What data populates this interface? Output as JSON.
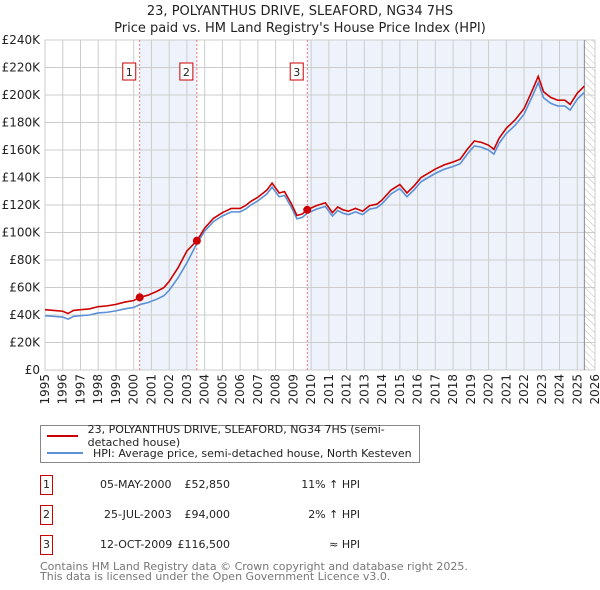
{
  "chart_data": {
    "type": "line",
    "title": "23, POLYANTHUS DRIVE, SLEAFORD, NG34 7HS",
    "subtitle": "Price paid vs. HM Land Registry's House Price Index (HPI)",
    "xlim": [
      1995,
      2026
    ],
    "ylim": [
      0,
      240000
    ],
    "x_ticks": [
      "1995",
      "1996",
      "1997",
      "1998",
      "1999",
      "2000",
      "2001",
      "2002",
      "2003",
      "2004",
      "2005",
      "2006",
      "2007",
      "2008",
      "2009",
      "2010",
      "2011",
      "2012",
      "2013",
      "2014",
      "2015",
      "2016",
      "2017",
      "2018",
      "2019",
      "2020",
      "2021",
      "2022",
      "2023",
      "2024",
      "2025",
      "2026"
    ],
    "y_ticks": [
      "£0",
      "£20K",
      "£40K",
      "£60K",
      "£80K",
      "£100K",
      "£120K",
      "£140K",
      "£160K",
      "£180K",
      "£200K",
      "£220K",
      "£240K"
    ],
    "grid": true,
    "colors": {
      "property": "#cc0000",
      "hpi": "#5b8fd6",
      "shade": "#eef3fb"
    },
    "hpi_series": {
      "name": "HPI: Average price, semi-detached house, North Kesteven",
      "x": [
        1995,
        1995.5,
        1996,
        1996.3,
        1996.6,
        1997,
        1997.5,
        1998,
        1998.5,
        1999,
        1999.5,
        2000,
        2000.34,
        2000.8,
        2001.3,
        2001.7,
        2002,
        2002.5,
        2003,
        2003.56,
        2004,
        2004.5,
        2005,
        2005.5,
        2006,
        2006.3,
        2006.6,
        2007,
        2007.5,
        2007.8,
        2008.2,
        2008.5,
        2008.9,
        2009.2,
        2009.5,
        2009.78,
        2010.3,
        2010.8,
        2011.2,
        2011.5,
        2011.8,
        2012.1,
        2012.5,
        2012.9,
        2013.3,
        2013.7,
        2014,
        2014.5,
        2015,
        2015.4,
        2015.8,
        2016.2,
        2016.6,
        2017,
        2017.5,
        2018,
        2018.4,
        2018.8,
        2019.2,
        2019.6,
        2020,
        2020.3,
        2020.6,
        2021,
        2021.5,
        2022,
        2022.5,
        2022.8,
        2023.1,
        2023.5,
        2023.9,
        2024.3,
        2024.6,
        2025,
        2025.4
      ],
      "y": [
        39500,
        39000,
        38500,
        37000,
        39000,
        39500,
        40000,
        41500,
        42000,
        43000,
        44500,
        45500,
        47600,
        49000,
        51500,
        54000,
        58000,
        67000,
        78000,
        92000,
        101000,
        108000,
        112000,
        115000,
        115000,
        117000,
        120000,
        123000,
        128000,
        133000,
        126000,
        127000,
        118000,
        110000,
        111000,
        114000,
        117000,
        119000,
        112000,
        116000,
        114000,
        113000,
        115000,
        113000,
        117000,
        118000,
        121000,
        128000,
        132000,
        126000,
        131000,
        137000,
        140000,
        143000,
        146000,
        148000,
        150000,
        157000,
        163000,
        162000,
        160000,
        157000,
        165000,
        172000,
        178000,
        186000,
        200000,
        209000,
        198000,
        194000,
        192000,
        192000,
        189000,
        197000,
        202000
      ]
    },
    "property_series": {
      "name": "23, POLYANTHUS DRIVE, SLEAFORD, NG34 7HS (semi-detached house)"
    },
    "sales": [
      {
        "n": "1",
        "x": 2000.34,
        "date": "05-MAY-2000",
        "price": 52850,
        "price_label": "£52,850",
        "hpi_label": "11% ↑ HPI"
      },
      {
        "n": "2",
        "x": 2003.56,
        "date": "25-JUL-2003",
        "price": 94000,
        "price_label": "£94,000",
        "hpi_label": "2% ↑ HPI"
      },
      {
        "n": "3",
        "x": 2009.78,
        "date": "12-OCT-2009",
        "price": 116500,
        "price_label": "£116,500",
        "hpi_label": "≈ HPI"
      }
    ],
    "data_end": 2025.4
  },
  "footer": {
    "line1": "Contains HM Land Registry data © Crown copyright and database right 2025.",
    "line2": "This data is licensed under the Open Government Licence v3.0."
  }
}
